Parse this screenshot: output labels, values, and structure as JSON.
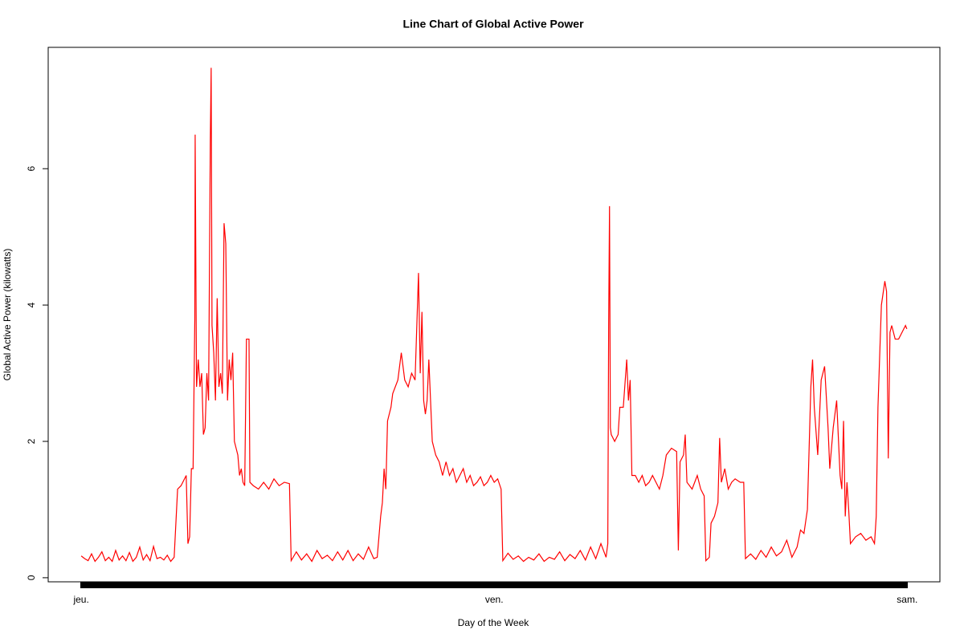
{
  "chart_data": {
    "type": "line",
    "title": "Line Chart of Global Active Power",
    "x_label": "Day of the Week",
    "y_label": "Global Active Power (kilowatts)",
    "xlim": [
      -1.92,
      49.9
    ],
    "ylim": [
      -0.06,
      7.78
    ],
    "xticks": [
      {
        "value": 0,
        "label": "jeu."
      },
      {
        "value": 24,
        "label": "ven."
      },
      {
        "value": 48,
        "label": "sam."
      }
    ],
    "yticks": [
      0,
      2,
      4,
      6
    ],
    "grid": false,
    "series": [
      {
        "color": "#ff0000",
        "x": [
          0,
          0.2,
          0.4,
          0.6,
          0.8,
          1.0,
          1.2,
          1.4,
          1.6,
          1.8,
          2.0,
          2.2,
          2.4,
          2.6,
          2.8,
          3.0,
          3.2,
          3.4,
          3.6,
          3.8,
          4.0,
          4.2,
          4.4,
          4.6,
          4.8,
          5.0,
          5.2,
          5.4,
          5.6,
          5.8,
          6.0,
          6.1,
          6.2,
          6.3,
          6.4,
          6.5,
          6.6,
          6.62,
          6.7,
          6.8,
          6.9,
          7.0,
          7.1,
          7.2,
          7.3,
          7.4,
          7.5,
          7.55,
          7.6,
          7.7,
          7.8,
          7.9,
          8.0,
          8.1,
          8.2,
          8.3,
          8.4,
          8.5,
          8.6,
          8.7,
          8.8,
          8.9,
          9.0,
          9.1,
          9.2,
          9.3,
          9.4,
          9.5,
          9.6,
          9.75,
          9.8,
          10.0,
          10.3,
          10.6,
          10.9,
          11.2,
          11.5,
          11.8,
          12.1,
          12.2,
          12.5,
          12.8,
          13.1,
          13.4,
          13.7,
          14.0,
          14.3,
          14.6,
          14.9,
          15.2,
          15.5,
          15.8,
          16.1,
          16.4,
          16.7,
          17.0,
          17.2,
          17.3,
          17.4,
          17.5,
          17.6,
          17.7,
          17.8,
          17.9,
          18.0,
          18.1,
          18.4,
          18.6,
          18.8,
          19.0,
          19.2,
          19.4,
          19.6,
          19.7,
          19.8,
          19.9,
          20.0,
          20.1,
          20.2,
          20.4,
          20.6,
          20.8,
          21.0,
          21.2,
          21.4,
          21.6,
          21.8,
          22.0,
          22.2,
          22.4,
          22.6,
          22.8,
          23.0,
          23.2,
          23.4,
          23.6,
          23.8,
          24.0,
          24.2,
          24.4,
          24.5,
          24.8,
          25.1,
          25.4,
          25.7,
          26.0,
          26.3,
          26.6,
          26.9,
          27.2,
          27.5,
          27.8,
          28.1,
          28.4,
          28.7,
          29.0,
          29.3,
          29.6,
          29.9,
          30.2,
          30.5,
          30.6,
          30.65,
          30.7,
          30.75,
          30.8,
          31.0,
          31.2,
          31.3,
          31.5,
          31.7,
          31.8,
          31.9,
          32.0,
          32.2,
          32.4,
          32.6,
          32.8,
          33.0,
          33.2,
          33.4,
          33.6,
          33.8,
          34.0,
          34.3,
          34.6,
          34.7,
          34.8,
          35.0,
          35.1,
          35.2,
          35.5,
          35.8,
          36.0,
          36.2,
          36.3,
          36.5,
          36.6,
          36.8,
          37.0,
          37.1,
          37.2,
          37.4,
          37.6,
          37.8,
          38.0,
          38.3,
          38.5,
          38.6,
          38.9,
          39.2,
          39.5,
          39.8,
          40.1,
          40.4,
          40.7,
          41.0,
          41.3,
          41.6,
          41.8,
          42.0,
          42.2,
          42.4,
          42.5,
          42.6,
          42.8,
          43.0,
          43.2,
          43.4,
          43.5,
          43.7,
          43.9,
          44.1,
          44.2,
          44.3,
          44.4,
          44.5,
          44.6,
          44.7,
          45.0,
          45.3,
          45.6,
          45.9,
          46.1,
          46.2,
          46.3,
          46.5,
          46.7,
          46.8,
          46.9,
          47.0,
          47.1,
          47.3,
          47.5,
          47.7,
          47.9,
          47.98
        ],
        "values": [
          0.32,
          0.28,
          0.25,
          0.35,
          0.24,
          0.3,
          0.38,
          0.25,
          0.3,
          0.24,
          0.4,
          0.26,
          0.32,
          0.25,
          0.37,
          0.24,
          0.3,
          0.45,
          0.26,
          0.34,
          0.25,
          0.46,
          0.28,
          0.3,
          0.26,
          0.33,
          0.24,
          0.3,
          1.3,
          1.35,
          1.45,
          1.5,
          0.5,
          0.6,
          1.6,
          1.6,
          3.8,
          6.5,
          2.8,
          3.2,
          2.8,
          3.0,
          2.1,
          2.2,
          3.0,
          2.6,
          6.4,
          7.48,
          3.7,
          3.3,
          2.6,
          4.1,
          2.8,
          3.0,
          2.7,
          5.2,
          4.9,
          2.6,
          3.2,
          2.9,
          3.3,
          2.0,
          1.9,
          1.8,
          1.5,
          1.6,
          1.4,
          1.35,
          3.5,
          3.5,
          1.4,
          1.35,
          1.3,
          1.4,
          1.3,
          1.45,
          1.35,
          1.4,
          1.38,
          0.25,
          0.38,
          0.26,
          0.35,
          0.24,
          0.4,
          0.28,
          0.33,
          0.25,
          0.38,
          0.26,
          0.4,
          0.25,
          0.35,
          0.27,
          0.45,
          0.28,
          0.3,
          0.6,
          0.9,
          1.1,
          1.6,
          1.3,
          2.3,
          2.4,
          2.5,
          2.7,
          2.9,
          3.3,
          2.9,
          2.8,
          3.0,
          2.9,
          4.47,
          3.0,
          3.9,
          2.6,
          2.4,
          2.6,
          3.2,
          2.0,
          1.8,
          1.7,
          1.5,
          1.7,
          1.5,
          1.6,
          1.4,
          1.5,
          1.6,
          1.4,
          1.5,
          1.35,
          1.4,
          1.48,
          1.35,
          1.4,
          1.5,
          1.4,
          1.45,
          1.3,
          0.25,
          0.36,
          0.27,
          0.32,
          0.24,
          0.3,
          0.26,
          0.35,
          0.24,
          0.3,
          0.27,
          0.38,
          0.25,
          0.34,
          0.28,
          0.4,
          0.26,
          0.45,
          0.28,
          0.5,
          0.3,
          0.5,
          3.7,
          5.45,
          2.2,
          2.1,
          2.0,
          2.1,
          2.5,
          2.5,
          3.2,
          2.6,
          2.9,
          1.5,
          1.5,
          1.4,
          1.5,
          1.35,
          1.4,
          1.5,
          1.4,
          1.3,
          1.5,
          1.8,
          1.9,
          1.85,
          0.4,
          1.7,
          1.8,
          2.1,
          1.4,
          1.3,
          1.5,
          1.3,
          1.2,
          0.25,
          0.3,
          0.8,
          0.9,
          1.1,
          2.05,
          1.4,
          1.6,
          1.3,
          1.4,
          1.45,
          1.4,
          1.4,
          0.28,
          0.35,
          0.27,
          0.4,
          0.3,
          0.45,
          0.32,
          0.38,
          0.55,
          0.3,
          0.45,
          0.7,
          0.65,
          1.0,
          2.8,
          3.2,
          2.5,
          1.8,
          2.9,
          3.1,
          2.2,
          1.6,
          2.2,
          2.6,
          1.5,
          1.3,
          2.3,
          0.9,
          1.4,
          1.0,
          0.5,
          0.6,
          0.65,
          0.55,
          0.6,
          0.5,
          0.9,
          2.5,
          4.0,
          4.35,
          4.2,
          1.75,
          3.6,
          3.7,
          3.5,
          3.5,
          3.6,
          3.7,
          3.65
        ]
      }
    ]
  }
}
